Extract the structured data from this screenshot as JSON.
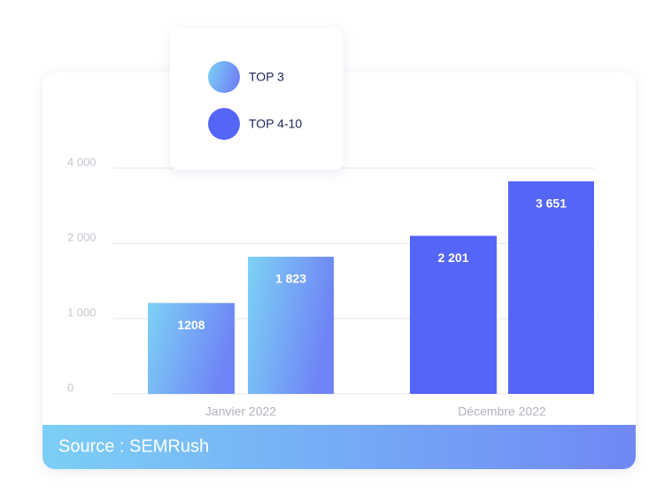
{
  "chart_data": {
    "type": "bar",
    "categories": [
      "Janvier 2022",
      "Décembre 2022"
    ],
    "series": [
      {
        "name": "TOP 3",
        "color": "#7dd2f5",
        "values": [
          1208,
          null
        ],
        "value_labels": [
          "1208",
          null
        ]
      },
      {
        "name": "TOP 4-10",
        "color": "#5565f6",
        "values": [
          1823,
          3651
        ],
        "value_labels": [
          "1 823",
          "3 651"
        ]
      }
    ],
    "bar_colors": [
      [
        "#7dd2f5",
        "#6f84f6"
      ],
      [
        "#7dd2f5",
        "#6f84f6"
      ],
      [
        "#5565f6",
        "#5565f6"
      ],
      [
        "#5565f6",
        "#5565f6"
      ]
    ],
    "bar_values": [
      1208,
      1823,
      2201,
      3651
    ],
    "bar_value_labels": [
      "1208",
      "1 823",
      "2 201",
      "3 651"
    ],
    "ylim": [
      0,
      4000
    ],
    "yticks": [
      0,
      {
        "value": 1000,
        "label": "1 000"
      },
      {
        "value": 2000,
        "label": "2 000"
      },
      {
        "value": 4000,
        "label": "4 000"
      }
    ],
    "grid": true
  },
  "source": "Source : SEMRush"
}
